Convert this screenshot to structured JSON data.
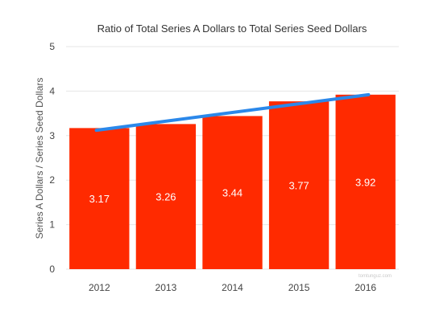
{
  "chart_data": {
    "type": "bar",
    "title": "Ratio of Total Series A Dollars to Total Series Seed Dollars",
    "xlabel": "",
    "ylabel": "Series A Dollars / Series Seed Dollars",
    "categories": [
      "2012",
      "2013",
      "2014",
      "2015",
      "2016"
    ],
    "values": [
      3.17,
      3.26,
      3.44,
      3.77,
      3.92
    ],
    "data_labels": [
      "3.17",
      "3.26",
      "3.44",
      "3.77",
      "3.92"
    ],
    "trendline": {
      "start": 3.12,
      "end": 3.92
    },
    "ylim": [
      0,
      5
    ],
    "yticks": [
      0,
      1,
      2,
      3,
      4,
      5
    ],
    "grid": true,
    "legend": "none",
    "colors": {
      "bar": "#ff2a00",
      "trendline": "#2b88ea",
      "grid": "#e6e6e6"
    },
    "watermark": "tomtunguz.com"
  }
}
